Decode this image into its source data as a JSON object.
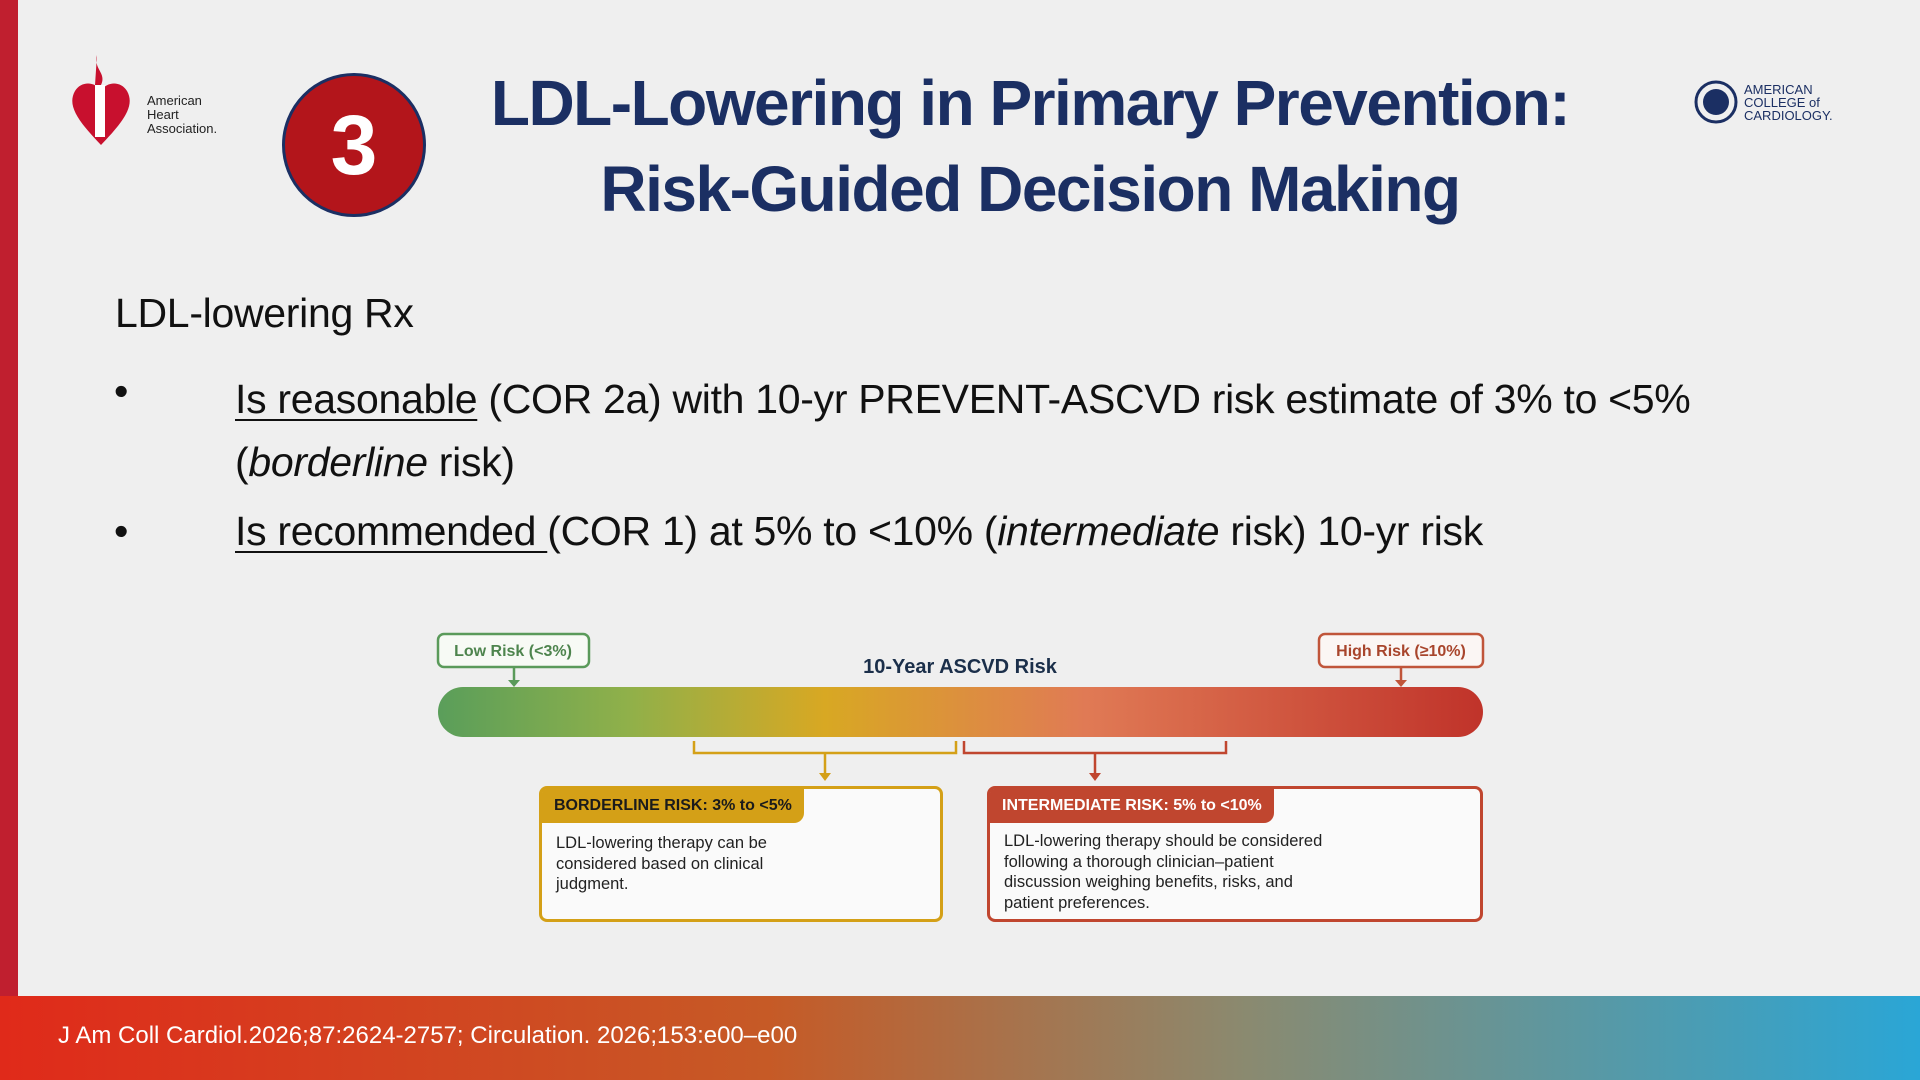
{
  "logos": {
    "aha": [
      "American",
      "Heart",
      "Association."
    ],
    "acc": [
      "AMERICAN",
      "COLLEGE of",
      "CARDIOLOGY."
    ]
  },
  "badge": "3",
  "title": {
    "line1": "LDL-Lowering in Primary Prevention:",
    "line2": "Risk-Guided Decision Making"
  },
  "body": {
    "heading": "LDL-lowering Rx",
    "bullets": [
      {
        "marker": "•",
        "underlined": "Is reasonable",
        "text1": " (COR 2a) with 10-yr PREVENT-ASCVD risk estimate of 3% to <5% (",
        "italic": "borderline",
        "text2": " risk)"
      },
      {
        "marker": "•",
        "underlined": "Is recommended ",
        "text1": "(COR 1) at 5% to <10% (",
        "italic": "intermediate",
        "text2": " risk) 10-yr risk"
      }
    ]
  },
  "figure": {
    "low": "Low Risk (<3%)",
    "high": "High Risk (≥10%)",
    "axis": "10-Year ASCVD Risk",
    "borderline": {
      "header": "BORDERLINE RISK: 3% to <5%",
      "text": "LDL-lowering therapy can be considered based on clinical judgment."
    },
    "intermediate": {
      "header": "INTERMEDIATE RISK: 5% to <10%",
      "text": "LDL-lowering therapy should be considered following a thorough clinician–patient discussion weighing benefits, risks, and patient preferences."
    }
  },
  "footer": "J Am Coll Cardiol.2026;87:2624-2757; Circulation. 2026;153:e00–e00"
}
